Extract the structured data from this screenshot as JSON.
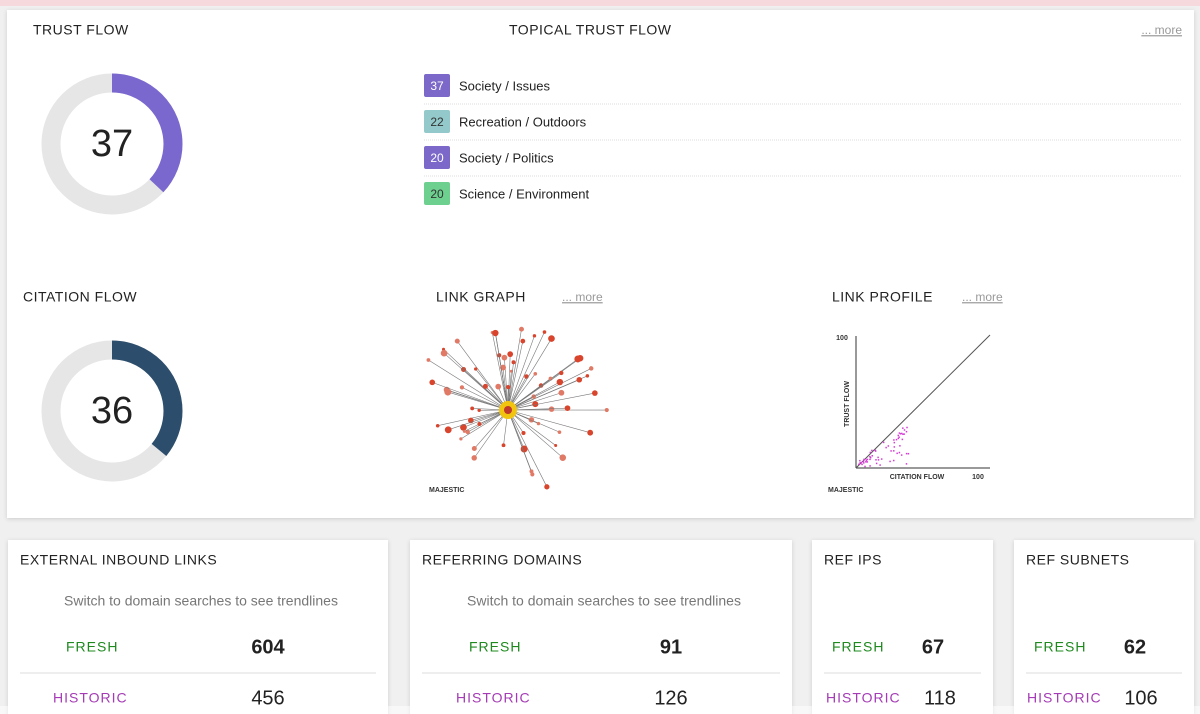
{
  "trust_flow": {
    "title": "TRUST FLOW",
    "value": 37,
    "max": 100,
    "color": "#7b68cf"
  },
  "topical_trust_flow": {
    "title": "TOPICAL TRUST FLOW",
    "more": "... more",
    "topics": [
      {
        "score": 37,
        "label": "Society / Issues",
        "color": "#7b68c8"
      },
      {
        "score": 22,
        "label": "Recreation / Outdoors",
        "color": "#93c9cb"
      },
      {
        "score": 20,
        "label": "Society / Politics",
        "color": "#7b68c8"
      },
      {
        "score": 20,
        "label": "Science / Environment",
        "color": "#6dd08f"
      }
    ]
  },
  "citation_flow": {
    "title": "CITATION FLOW",
    "value": 36,
    "max": 100,
    "color": "#2c4e6c"
  },
  "link_graph": {
    "title": "LINK GRAPH",
    "more": "... more",
    "logo": "MAJESTIC"
  },
  "link_profile": {
    "title": "LINK PROFILE",
    "more": "... more",
    "y_label": "TRUST FLOW",
    "x_label": "CITATION FLOW",
    "y_max": "100",
    "x_max": "100",
    "logo": "MAJESTIC"
  },
  "cards": [
    {
      "title": "EXTERNAL INBOUND LINKS",
      "note": "Switch to domain searches to see trendlines",
      "fresh_label": "FRESH",
      "fresh": 604,
      "historic_label": "HISTORIC",
      "historic": 456
    },
    {
      "title": "REFERRING DOMAINS",
      "note": "Switch to domain searches to see trendlines",
      "fresh_label": "FRESH",
      "fresh": 91,
      "historic_label": "HISTORIC",
      "historic": 126
    },
    {
      "title": "REF IPS",
      "fresh_label": "FRESH",
      "fresh": 67,
      "historic_label": "HISTORIC",
      "historic": 118
    },
    {
      "title": "REF SUBNETS",
      "fresh_label": "FRESH",
      "fresh": 62,
      "historic_label": "HISTORIC",
      "historic": 106
    }
  ]
}
